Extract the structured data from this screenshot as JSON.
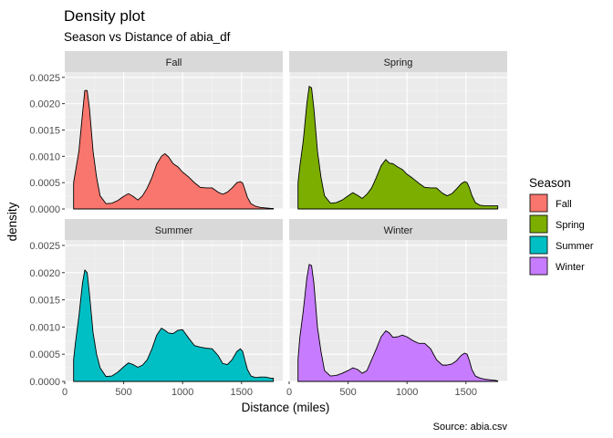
{
  "chart_data": {
    "type": "area",
    "subtype": "density",
    "title": "Density plot",
    "subtitle": "Season vs Distance of abia_df",
    "xlabel": "Distance (miles)",
    "ylabel": "density",
    "caption": "Source: abia.csv",
    "legend_title": "Season",
    "legend_position": "right",
    "grid": true,
    "xlim": [
      0,
      1850
    ],
    "ylim": [
      0,
      0.0026
    ],
    "x_ticks": [
      0,
      500,
      1000,
      1500
    ],
    "x_tick_labels": [
      "0",
      "500",
      "1000",
      "1500"
    ],
    "y_ticks": [
      0,
      0.0005,
      0.001,
      0.0015,
      0.002,
      0.0025
    ],
    "y_tick_labels": [
      "0.0000",
      "0.0005",
      "0.0010",
      "0.0015",
      "0.0020",
      "0.0025"
    ],
    "facet_layout": "2x2",
    "series": [
      {
        "name": "Fall",
        "color": "#F8766D",
        "x": [
          75,
          90,
          120,
          150,
          170,
          190,
          210,
          240,
          270,
          300,
          350,
          400,
          450,
          500,
          540,
          580,
          620,
          660,
          700,
          740,
          780,
          820,
          850,
          880,
          920,
          960,
          1000,
          1050,
          1100,
          1150,
          1200,
          1250,
          1300,
          1340,
          1380,
          1420,
          1460,
          1490,
          1510,
          1530,
          1550,
          1580,
          1620,
          1660,
          1700,
          1750,
          1770
        ],
        "y": [
          0.0005,
          0.0007,
          0.0011,
          0.0018,
          0.00225,
          0.00225,
          0.0019,
          0.0011,
          0.0006,
          0.00025,
          0.0001,
          0.00011,
          0.00016,
          0.00024,
          0.00029,
          0.00024,
          0.00017,
          0.00025,
          0.0004,
          0.0006,
          0.00085,
          0.001,
          0.00105,
          0.00099,
          0.00086,
          0.0008,
          0.0007,
          0.00061,
          0.0005,
          0.00041,
          0.0004,
          0.0004,
          0.00032,
          0.00028,
          0.00032,
          0.0004,
          0.0005,
          0.00052,
          0.00049,
          0.00036,
          0.00022,
          0.0001,
          5e-05,
          3e-05,
          2e-05,
          1e-05,
          1e-05
        ]
      },
      {
        "name": "Spring",
        "color": "#7CAE00",
        "x": [
          75,
          90,
          120,
          150,
          170,
          190,
          210,
          240,
          270,
          300,
          350,
          400,
          450,
          500,
          540,
          580,
          620,
          660,
          700,
          740,
          780,
          820,
          850,
          880,
          920,
          960,
          1000,
          1050,
          1100,
          1150,
          1200,
          1250,
          1300,
          1340,
          1380,
          1420,
          1460,
          1490,
          1510,
          1530,
          1550,
          1580,
          1620,
          1660,
          1700,
          1750,
          1770
        ],
        "y": [
          0.0005,
          0.0008,
          0.0013,
          0.002,
          0.00233,
          0.0023,
          0.0019,
          0.0011,
          0.0006,
          0.00025,
          0.00011,
          0.00012,
          0.00017,
          0.00025,
          0.00031,
          0.00026,
          0.0002,
          0.00028,
          0.0004,
          0.0006,
          0.00082,
          0.00094,
          0.00087,
          0.00086,
          0.0008,
          0.00075,
          0.00066,
          0.00058,
          0.00049,
          0.00041,
          0.0004,
          0.0004,
          0.0003,
          0.00025,
          0.00029,
          0.00038,
          0.00048,
          0.00052,
          0.0005,
          0.0004,
          0.00026,
          0.00012,
          7e-05,
          6e-05,
          6e-05,
          6e-05,
          6e-05
        ]
      },
      {
        "name": "Summer",
        "color": "#00BFC4",
        "x": [
          75,
          90,
          120,
          150,
          170,
          190,
          210,
          240,
          270,
          300,
          350,
          400,
          450,
          500,
          540,
          580,
          620,
          660,
          700,
          740,
          780,
          820,
          850,
          880,
          920,
          960,
          1000,
          1050,
          1100,
          1150,
          1200,
          1250,
          1300,
          1340,
          1380,
          1420,
          1460,
          1490,
          1510,
          1530,
          1550,
          1580,
          1620,
          1660,
          1700,
          1750,
          1770
        ],
        "y": [
          0.0004,
          0.0007,
          0.0012,
          0.0018,
          0.00205,
          0.002,
          0.0016,
          0.0009,
          0.0005,
          0.00025,
          9e-05,
          0.0001,
          0.00017,
          0.00027,
          0.00034,
          0.00031,
          0.00026,
          0.0003,
          0.0004,
          0.0006,
          0.00085,
          0.00098,
          0.00094,
          0.00089,
          0.00088,
          0.00094,
          0.00095,
          0.0008,
          0.00066,
          0.00063,
          0.00061,
          0.0006,
          0.00048,
          0.00033,
          0.00031,
          0.0004,
          0.00055,
          0.0006,
          0.00055,
          0.00038,
          0.00022,
          0.0001,
          7e-05,
          8e-05,
          8e-05,
          6e-05,
          6e-05
        ]
      },
      {
        "name": "Winter",
        "color": "#C77CFF",
        "x": [
          75,
          90,
          120,
          150,
          170,
          190,
          210,
          240,
          270,
          300,
          350,
          400,
          450,
          500,
          540,
          580,
          620,
          660,
          700,
          740,
          780,
          820,
          850,
          880,
          920,
          960,
          1000,
          1050,
          1100,
          1150,
          1200,
          1250,
          1300,
          1340,
          1380,
          1420,
          1460,
          1490,
          1510,
          1530,
          1550,
          1580,
          1620,
          1660,
          1700,
          1750,
          1770
        ],
        "y": [
          0.0004,
          0.0008,
          0.0013,
          0.0019,
          0.00215,
          0.00213,
          0.0018,
          0.001,
          0.00055,
          0.0002,
          0.0001,
          0.00011,
          0.00015,
          0.0002,
          0.00025,
          0.00022,
          0.00015,
          0.0002,
          0.0004,
          0.0006,
          0.00082,
          0.00093,
          0.00089,
          0.00081,
          0.00082,
          0.00085,
          0.00082,
          0.00075,
          0.0007,
          0.0007,
          0.0006,
          0.0004,
          0.0003,
          0.0003,
          0.00032,
          0.00038,
          0.00048,
          0.00052,
          0.0005,
          0.00038,
          0.00022,
          0.0001,
          6e-05,
          4e-05,
          3e-05,
          2e-05,
          1e-05
        ]
      }
    ]
  }
}
